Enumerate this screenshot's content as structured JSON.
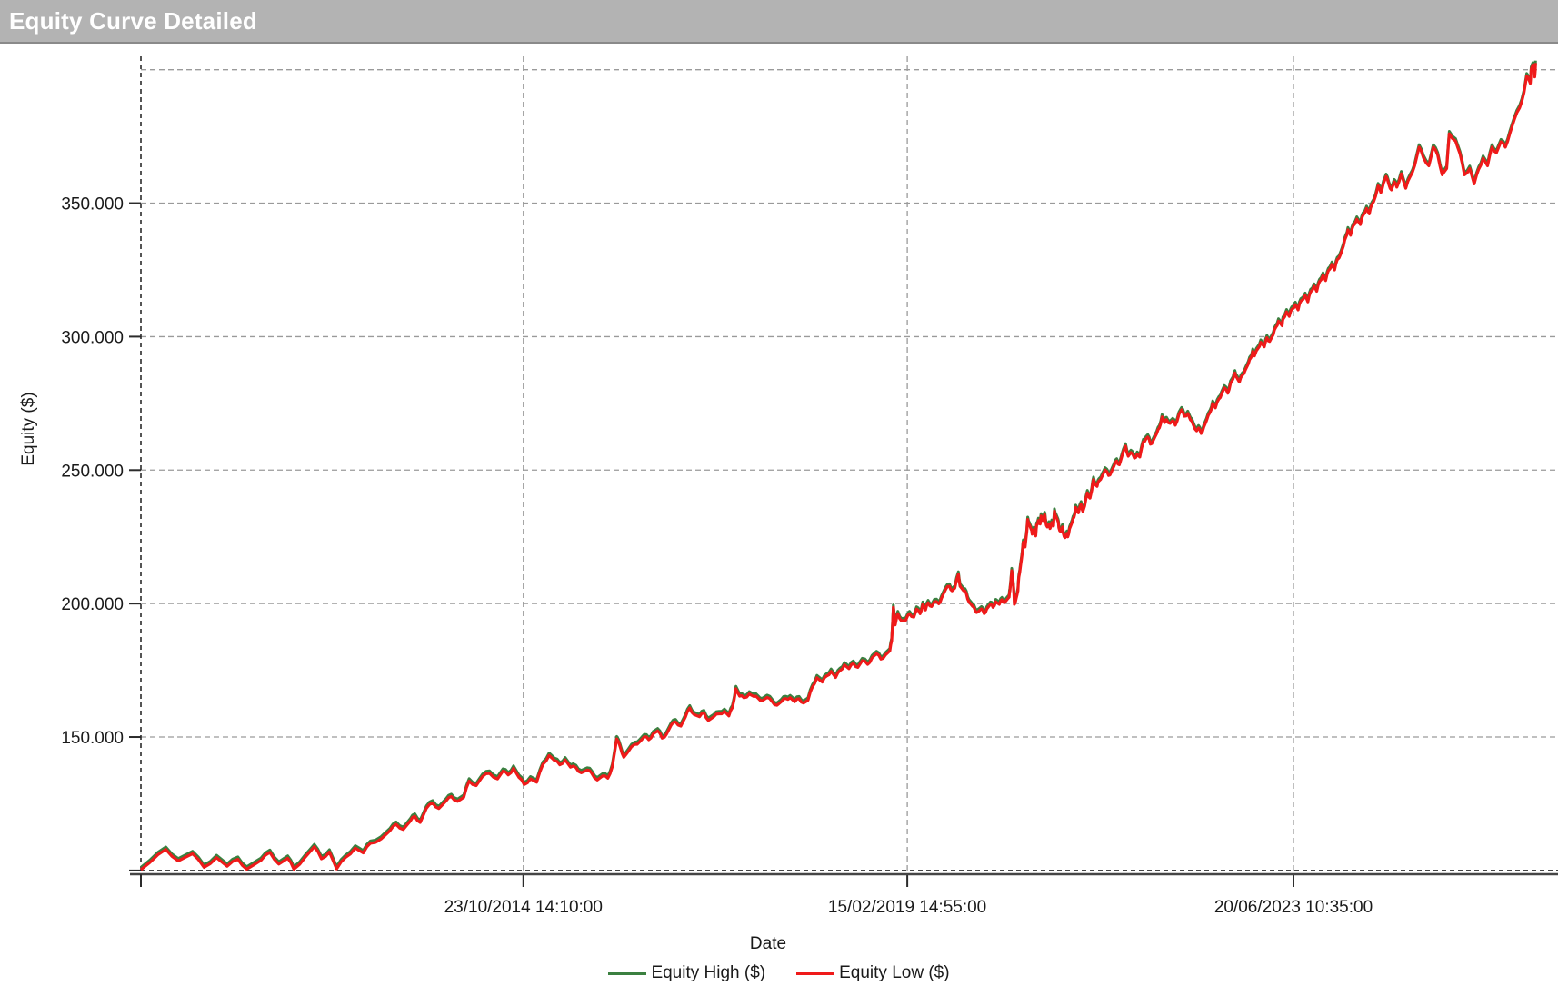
{
  "window": {
    "title": "Equity Curve Detailed"
  },
  "colors": {
    "titlebar_bg": "#b3b3b3",
    "titlebar_text": "#ffffff",
    "grid": "#9a9a9a",
    "axis_dark": "#2b2b2b",
    "axis_solid": "#454545",
    "text": "#1a1a1a",
    "equity_high": "#3b8040",
    "equity_low": "#ef1a1a"
  },
  "chart_data": {
    "type": "line",
    "title": "Equity Curve Detailed",
    "xlabel": "Date",
    "ylabel": "Equity ($)",
    "grid": "dashed",
    "legend_position": "bottom-center",
    "x_range_decimal_years": [
      2010.51,
      2026.35
    ],
    "y_range_usd": [
      98600,
      405000
    ],
    "x_ticks": [
      {
        "pos": 2014.81,
        "label": "23/10/2014 14:10:00"
      },
      {
        "pos": 2019.126,
        "label": "15/02/2019 14:55:00"
      },
      {
        "pos": 2023.468,
        "label": "20/06/2023 10:35:00"
      }
    ],
    "y_ticks": [
      {
        "pos": 150000,
        "label": "150.000"
      },
      {
        "pos": 200000,
        "label": "200.000"
      },
      {
        "pos": 250000,
        "label": "250.000"
      },
      {
        "pos": 300000,
        "label": "300.000"
      },
      {
        "pos": 350000,
        "label": "350.000"
      }
    ],
    "unlabeled_gridlines_usd": {
      "gray": [
        400000
      ],
      "dark": [
        100000
      ]
    },
    "legend": [
      {
        "label": "Equity High ($)",
        "color": "#3b8040"
      },
      {
        "label": "Equity Low ($)",
        "color": "#ef1a1a"
      }
    ],
    "high_minus_low_est_usd": 900,
    "point_format": [
      "decimal_year",
      "equity_low_usd"
    ],
    "points": [
      [
        2010.51,
        100300
      ],
      [
        2010.61,
        103000
      ],
      [
        2010.79,
        107900
      ],
      [
        2010.93,
        103600
      ],
      [
        2011.09,
        106300
      ],
      [
        2011.22,
        101200
      ],
      [
        2011.36,
        104800
      ],
      [
        2011.48,
        101600
      ],
      [
        2011.6,
        104200
      ],
      [
        2011.7,
        100500
      ],
      [
        2011.86,
        103800
      ],
      [
        2011.96,
        106800
      ],
      [
        2012.06,
        102400
      ],
      [
        2012.16,
        104600
      ],
      [
        2012.23,
        100500
      ],
      [
        2012.36,
        105100
      ],
      [
        2012.46,
        108900
      ],
      [
        2012.54,
        104400
      ],
      [
        2012.63,
        106900
      ],
      [
        2012.71,
        100600
      ],
      [
        2012.81,
        104900
      ],
      [
        2012.92,
        108400
      ],
      [
        2013.01,
        106600
      ],
      [
        2013.09,
        110200
      ],
      [
        2013.21,
        111800
      ],
      [
        2013.31,
        114900
      ],
      [
        2013.38,
        117300
      ],
      [
        2013.46,
        115400
      ],
      [
        2013.54,
        118600
      ],
      [
        2013.59,
        120300
      ],
      [
        2013.65,
        118000
      ],
      [
        2013.72,
        123300
      ],
      [
        2013.79,
        125300
      ],
      [
        2013.86,
        123200
      ],
      [
        2013.94,
        126000
      ],
      [
        2014.0,
        127700
      ],
      [
        2014.07,
        125900
      ],
      [
        2014.14,
        127400
      ],
      [
        2014.2,
        133500
      ],
      [
        2014.28,
        131800
      ],
      [
        2014.35,
        135200
      ],
      [
        2014.43,
        136400
      ],
      [
        2014.52,
        134300
      ],
      [
        2014.58,
        137200
      ],
      [
        2014.64,
        135800
      ],
      [
        2014.7,
        138300
      ],
      [
        2014.76,
        134900
      ],
      [
        2014.82,
        132200
      ],
      [
        2014.89,
        134300
      ],
      [
        2014.96,
        133100
      ],
      [
        2015.03,
        139800
      ],
      [
        2015.1,
        143100
      ],
      [
        2015.16,
        141200
      ],
      [
        2015.22,
        139600
      ],
      [
        2015.28,
        141400
      ],
      [
        2015.34,
        138700
      ],
      [
        2015.4,
        138600
      ],
      [
        2015.46,
        136600
      ],
      [
        2015.53,
        137600
      ],
      [
        2015.58,
        136400
      ],
      [
        2015.64,
        133900
      ],
      [
        2015.7,
        135400
      ],
      [
        2015.76,
        134600
      ],
      [
        2015.81,
        138900
      ],
      [
        2015.86,
        149300
      ],
      [
        2015.9,
        146200
      ],
      [
        2015.94,
        142400
      ],
      [
        2015.99,
        144600
      ],
      [
        2016.06,
        147200
      ],
      [
        2016.12,
        148300
      ],
      [
        2016.17,
        150100
      ],
      [
        2016.22,
        149000
      ],
      [
        2016.27,
        151200
      ],
      [
        2016.32,
        152300
      ],
      [
        2016.37,
        149600
      ],
      [
        2016.42,
        151100
      ],
      [
        2016.47,
        154400
      ],
      [
        2016.52,
        155700
      ],
      [
        2016.58,
        154100
      ],
      [
        2016.63,
        157400
      ],
      [
        2016.68,
        160900
      ],
      [
        2016.73,
        158400
      ],
      [
        2016.79,
        157600
      ],
      [
        2016.84,
        159100
      ],
      [
        2016.89,
        156200
      ],
      [
        2016.95,
        157600
      ],
      [
        2017.01,
        158700
      ],
      [
        2017.07,
        159600
      ],
      [
        2017.12,
        157900
      ],
      [
        2017.16,
        161000
      ],
      [
        2017.2,
        168100
      ],
      [
        2017.24,
        165300
      ],
      [
        2017.29,
        164700
      ],
      [
        2017.35,
        166100
      ],
      [
        2017.4,
        165200
      ],
      [
        2017.45,
        164500
      ],
      [
        2017.5,
        163700
      ],
      [
        2017.55,
        164800
      ],
      [
        2017.61,
        163100
      ],
      [
        2017.66,
        161900
      ],
      [
        2017.71,
        163200
      ],
      [
        2017.76,
        164400
      ],
      [
        2017.81,
        164700
      ],
      [
        2017.86,
        163200
      ],
      [
        2017.91,
        164300
      ],
      [
        2017.96,
        162700
      ],
      [
        2018.01,
        163800
      ],
      [
        2018.06,
        168800
      ],
      [
        2018.11,
        172200
      ],
      [
        2018.17,
        170600
      ],
      [
        2018.22,
        172900
      ],
      [
        2018.27,
        174600
      ],
      [
        2018.32,
        172300
      ],
      [
        2018.37,
        174900
      ],
      [
        2018.42,
        177000
      ],
      [
        2018.47,
        175600
      ],
      [
        2018.52,
        177600
      ],
      [
        2018.57,
        176100
      ],
      [
        2018.62,
        178600
      ],
      [
        2018.68,
        177200
      ],
      [
        2018.73,
        179700
      ],
      [
        2018.78,
        181200
      ],
      [
        2018.83,
        179200
      ],
      [
        2018.88,
        180700
      ],
      [
        2018.93,
        182300
      ],
      [
        2018.95,
        186000
      ],
      [
        2018.97,
        198600
      ],
      [
        2018.99,
        192000
      ],
      [
        2019.02,
        196200
      ],
      [
        2019.06,
        193500
      ],
      [
        2019.11,
        193800
      ],
      [
        2019.15,
        196200
      ],
      [
        2019.2,
        194900
      ],
      [
        2019.23,
        197900
      ],
      [
        2019.27,
        196200
      ],
      [
        2019.3,
        199700
      ],
      [
        2019.33,
        197600
      ],
      [
        2019.36,
        200300
      ],
      [
        2019.4,
        198900
      ],
      [
        2019.43,
        200700
      ],
      [
        2019.48,
        199900
      ],
      [
        2019.51,
        202000
      ],
      [
        2019.56,
        205500
      ],
      [
        2019.6,
        206500
      ],
      [
        2019.63,
        204800
      ],
      [
        2019.66,
        205800
      ],
      [
        2019.7,
        211000
      ],
      [
        2019.72,
        206500
      ],
      [
        2019.76,
        204800
      ],
      [
        2019.79,
        203700
      ],
      [
        2019.82,
        200600
      ],
      [
        2019.86,
        199000
      ],
      [
        2019.89,
        197300
      ],
      [
        2019.92,
        196900
      ],
      [
        2019.96,
        198000
      ],
      [
        2019.99,
        196200
      ],
      [
        2020.02,
        198000
      ],
      [
        2020.06,
        199700
      ],
      [
        2020.09,
        198600
      ],
      [
        2020.12,
        200700
      ],
      [
        2020.16,
        199700
      ],
      [
        2020.19,
        201400
      ],
      [
        2020.22,
        200400
      ],
      [
        2020.27,
        202400
      ],
      [
        2020.28,
        204800
      ],
      [
        2020.3,
        212300
      ],
      [
        2020.32,
        206500
      ],
      [
        2020.33,
        199700
      ],
      [
        2020.35,
        202000
      ],
      [
        2020.37,
        204800
      ],
      [
        2020.38,
        209900
      ],
      [
        2020.4,
        214400
      ],
      [
        2020.42,
        219200
      ],
      [
        2020.43,
        223000
      ],
      [
        2020.45,
        221200
      ],
      [
        2020.47,
        227000
      ],
      [
        2020.48,
        231500
      ],
      [
        2020.5,
        229400
      ],
      [
        2020.52,
        227700
      ],
      [
        2020.53,
        226000
      ],
      [
        2020.55,
        227700
      ],
      [
        2020.57,
        225300
      ],
      [
        2020.58,
        229400
      ],
      [
        2020.6,
        231100
      ],
      [
        2020.62,
        229800
      ],
      [
        2020.63,
        232800
      ],
      [
        2020.65,
        231100
      ],
      [
        2020.67,
        233300
      ],
      [
        2020.68,
        230800
      ],
      [
        2020.7,
        228700
      ],
      [
        2020.72,
        229800
      ],
      [
        2020.73,
        228100
      ],
      [
        2020.75,
        230400
      ],
      [
        2020.77,
        229100
      ],
      [
        2020.78,
        234600
      ],
      [
        2020.8,
        232500
      ],
      [
        2020.82,
        230800
      ],
      [
        2020.83,
        228400
      ],
      [
        2020.85,
        227000
      ],
      [
        2020.87,
        228700
      ],
      [
        2020.88,
        226300
      ],
      [
        2020.9,
        224700
      ],
      [
        2020.92,
        226300
      ],
      [
        2020.93,
        225000
      ],
      [
        2020.95,
        228000
      ],
      [
        2020.98,
        230500
      ],
      [
        2021.0,
        232300
      ],
      [
        2021.02,
        236000
      ],
      [
        2021.05,
        234000
      ],
      [
        2021.08,
        237300
      ],
      [
        2021.1,
        234500
      ],
      [
        2021.12,
        236500
      ],
      [
        2021.15,
        241500
      ],
      [
        2021.18,
        239500
      ],
      [
        2021.2,
        242500
      ],
      [
        2021.22,
        246500
      ],
      [
        2021.24,
        244500
      ],
      [
        2021.26,
        243900
      ],
      [
        2021.28,
        245900
      ],
      [
        2021.32,
        248000
      ],
      [
        2021.35,
        250000
      ],
      [
        2021.39,
        248000
      ],
      [
        2021.42,
        249300
      ],
      [
        2021.45,
        251500
      ],
      [
        2021.48,
        253400
      ],
      [
        2021.51,
        252000
      ],
      [
        2021.53,
        254100
      ],
      [
        2021.58,
        259000
      ],
      [
        2021.61,
        255200
      ],
      [
        2021.64,
        256600
      ],
      [
        2021.68,
        254500
      ],
      [
        2021.71,
        255900
      ],
      [
        2021.74,
        254900
      ],
      [
        2021.78,
        260700
      ],
      [
        2021.81,
        261700
      ],
      [
        2021.83,
        262400
      ],
      [
        2021.86,
        259700
      ],
      [
        2021.89,
        261000
      ],
      [
        2021.93,
        263700
      ],
      [
        2021.96,
        265800
      ],
      [
        2021.99,
        269900
      ],
      [
        2022.02,
        267800
      ],
      [
        2022.04,
        268900
      ],
      [
        2022.08,
        267500
      ],
      [
        2022.11,
        268500
      ],
      [
        2022.14,
        266800
      ],
      [
        2022.18,
        270900
      ],
      [
        2022.21,
        272600
      ],
      [
        2022.24,
        270200
      ],
      [
        2022.28,
        271200
      ],
      [
        2022.31,
        268800
      ],
      [
        2022.34,
        267100
      ],
      [
        2022.38,
        264700
      ],
      [
        2022.4,
        265800
      ],
      [
        2022.43,
        263700
      ],
      [
        2022.46,
        266100
      ],
      [
        2022.49,
        268500
      ],
      [
        2022.53,
        271600
      ],
      [
        2022.56,
        275000
      ],
      [
        2022.59,
        273300
      ],
      [
        2022.63,
        276700
      ],
      [
        2022.66,
        278500
      ],
      [
        2022.69,
        280800
      ],
      [
        2022.73,
        278800
      ],
      [
        2022.76,
        282500
      ],
      [
        2022.79,
        284200
      ],
      [
        2022.81,
        286400
      ],
      [
        2022.83,
        284700
      ],
      [
        2022.86,
        283000
      ],
      [
        2022.89,
        285400
      ],
      [
        2022.93,
        287700
      ],
      [
        2022.96,
        289800
      ],
      [
        2022.99,
        292100
      ],
      [
        2023.01,
        294500
      ],
      [
        2023.03,
        292800
      ],
      [
        2023.07,
        295600
      ],
      [
        2023.1,
        297900
      ],
      [
        2023.14,
        296200
      ],
      [
        2023.17,
        299600
      ],
      [
        2023.2,
        298200
      ],
      [
        2023.24,
        300700
      ],
      [
        2023.27,
        303500
      ],
      [
        2023.3,
        305800
      ],
      [
        2023.34,
        304100
      ],
      [
        2023.35,
        306500
      ],
      [
        2023.39,
        309300
      ],
      [
        2023.42,
        307600
      ],
      [
        2023.45,
        310300
      ],
      [
        2023.49,
        312000
      ],
      [
        2023.52,
        310000
      ],
      [
        2023.55,
        313300
      ],
      [
        2023.6,
        315400
      ],
      [
        2023.63,
        313000
      ],
      [
        2023.66,
        316800
      ],
      [
        2023.7,
        318900
      ],
      [
        2023.73,
        317000
      ],
      [
        2023.76,
        320600
      ],
      [
        2023.8,
        323000
      ],
      [
        2023.83,
        321000
      ],
      [
        2023.86,
        324700
      ],
      [
        2023.9,
        327100
      ],
      [
        2023.93,
        325000
      ],
      [
        2023.96,
        328800
      ],
      [
        2024.0,
        331000
      ],
      [
        2024.03,
        334000
      ],
      [
        2024.06,
        337500
      ],
      [
        2024.08,
        340000
      ],
      [
        2024.11,
        338000
      ],
      [
        2024.14,
        341500
      ],
      [
        2024.18,
        344000
      ],
      [
        2024.22,
        342000
      ],
      [
        2024.25,
        345500
      ],
      [
        2024.29,
        348000
      ],
      [
        2024.32,
        346000
      ],
      [
        2024.35,
        349500
      ],
      [
        2024.39,
        352500
      ],
      [
        2024.42,
        356500
      ],
      [
        2024.45,
        354000
      ],
      [
        2024.48,
        357500
      ],
      [
        2024.51,
        360000
      ],
      [
        2024.54,
        357000
      ],
      [
        2024.57,
        355000
      ],
      [
        2024.6,
        358000
      ],
      [
        2024.63,
        356000
      ],
      [
        2024.68,
        361000
      ],
      [
        2024.73,
        355600
      ],
      [
        2024.78,
        360000
      ],
      [
        2024.83,
        364000
      ],
      [
        2024.88,
        371000
      ],
      [
        2024.93,
        367000
      ],
      [
        2024.99,
        364000
      ],
      [
        2025.04,
        371000
      ],
      [
        2025.09,
        368000
      ],
      [
        2025.14,
        360600
      ],
      [
        2025.19,
        363000
      ],
      [
        2025.22,
        376000
      ],
      [
        2025.29,
        373300
      ],
      [
        2025.34,
        368500
      ],
      [
        2025.39,
        360600
      ],
      [
        2025.45,
        363000
      ],
      [
        2025.5,
        357200
      ],
      [
        2025.55,
        362700
      ],
      [
        2025.6,
        366800
      ],
      [
        2025.65,
        364000
      ],
      [
        2025.7,
        371000
      ],
      [
        2025.75,
        368900
      ],
      [
        2025.8,
        373000
      ],
      [
        2025.85,
        371000
      ],
      [
        2025.9,
        376100
      ],
      [
        2025.95,
        381300
      ],
      [
        2026.01,
        385700
      ],
      [
        2026.06,
        391500
      ],
      [
        2026.09,
        397700
      ],
      [
        2026.13,
        394900
      ],
      [
        2026.14,
        400100
      ],
      [
        2026.16,
        401800
      ],
      [
        2026.18,
        397300
      ],
      [
        2026.19,
        402500
      ]
    ]
  }
}
